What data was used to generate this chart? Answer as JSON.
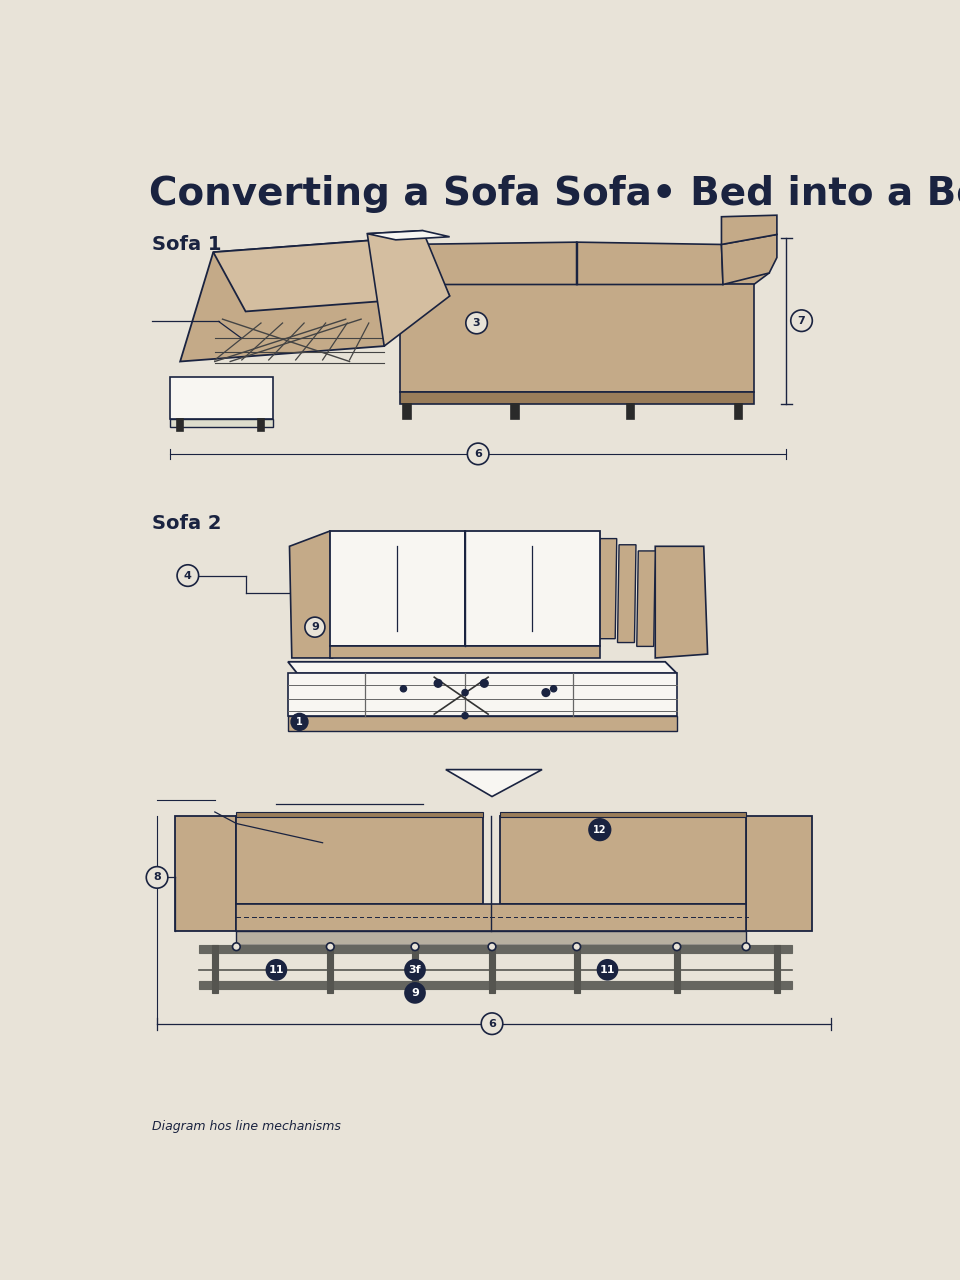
{
  "title": "Converting a Sofa Sofa• Bed into a Bed",
  "background_color": "#e8e3d8",
  "text_color": "#1a2340",
  "line_color": "#1a2340",
  "sofa_color": "#c4aa88",
  "sofa_light": "#d4bea0",
  "sofa_dark": "#9a7d5a",
  "white_color": "#f8f6f2",
  "frame_color": "#888880",
  "subtitle1": "Sofa 1",
  "subtitle2": "Sofa 2",
  "footer": "Diagram hos line mechanisms",
  "title_fontsize": 28,
  "subtitle_fontsize": 14,
  "footer_fontsize": 9
}
